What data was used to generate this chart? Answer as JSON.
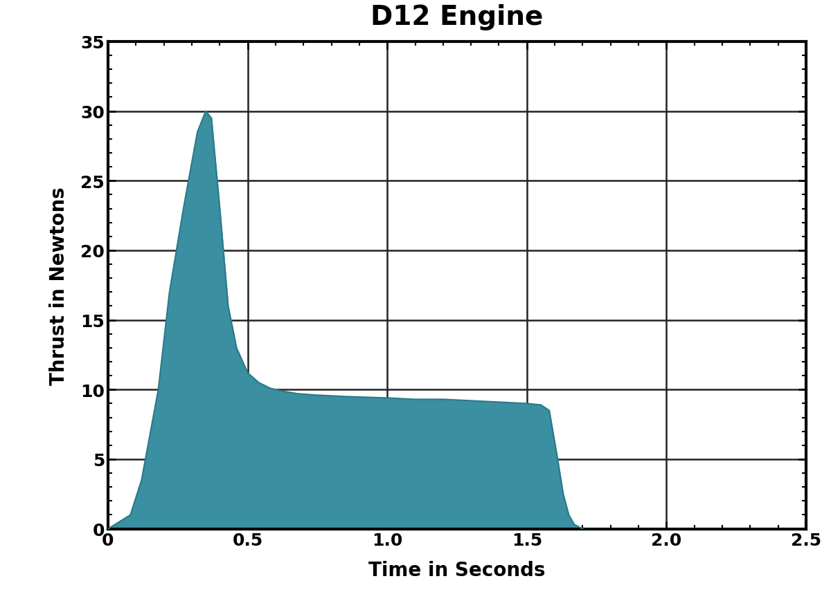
{
  "title": "D12 Engine",
  "xlabel": "Time in Seconds",
  "ylabel": "Thrust in Newtons",
  "fill_color": "#3a8fa0",
  "line_color": "#2a7a8a",
  "background_color": "#ffffff",
  "xlim": [
    0,
    2.5
  ],
  "ylim": [
    0,
    35
  ],
  "xticks": [
    0,
    0.5,
    1.0,
    1.5,
    2.0,
    2.5
  ],
  "xtick_labels": [
    "0",
    "0.5",
    "1.0",
    "1.5",
    "2.0",
    "2.5"
  ],
  "yticks": [
    0,
    5,
    10,
    15,
    20,
    25,
    30,
    35
  ],
  "ytick_labels": [
    "0",
    "5",
    "10",
    "15",
    "20",
    "25",
    "30",
    "35"
  ],
  "title_fontsize": 28,
  "label_fontsize": 20,
  "tick_fontsize": 18,
  "grid_color": "#222222",
  "grid_linewidth": 1.8,
  "spine_linewidth": 3.0,
  "thrust_curve_x": [
    0.0,
    0.08,
    0.12,
    0.18,
    0.22,
    0.27,
    0.32,
    0.35,
    0.37,
    0.4,
    0.43,
    0.46,
    0.5,
    0.54,
    0.58,
    0.62,
    0.68,
    0.75,
    0.85,
    1.0,
    1.1,
    1.2,
    1.3,
    1.4,
    1.5,
    1.55,
    1.58,
    1.61,
    1.63,
    1.65,
    1.67,
    1.7
  ],
  "thrust_curve_y": [
    0.0,
    1.0,
    3.5,
    10.0,
    17.0,
    23.0,
    28.5,
    30.0,
    29.5,
    23.0,
    16.0,
    13.0,
    11.2,
    10.5,
    10.1,
    9.9,
    9.7,
    9.6,
    9.5,
    9.4,
    9.3,
    9.3,
    9.2,
    9.1,
    9.0,
    8.9,
    8.5,
    5.0,
    2.5,
    1.0,
    0.3,
    0.0
  ]
}
